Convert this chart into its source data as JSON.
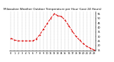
{
  "title": "Milwaukee Weather Outdoor Temperature per Hour (Last 24 Hours)",
  "hours": [
    0,
    1,
    2,
    3,
    4,
    5,
    6,
    7,
    8,
    9,
    10,
    11,
    12,
    13,
    14,
    15,
    16,
    17,
    18,
    19,
    20,
    21,
    22,
    23
  ],
  "temps": [
    28,
    26,
    25,
    25,
    25,
    25,
    25,
    27,
    32,
    38,
    44,
    50,
    55,
    53,
    52,
    48,
    42,
    36,
    30,
    26,
    22,
    19,
    17,
    15
  ],
  "line_color": "#dd0000",
  "marker": "o",
  "bg_color": "#ffffff",
  "plot_bg": "#ffffff",
  "grid_color": "#888888",
  "ylim": [
    14,
    58
  ],
  "yticks": [
    15,
    20,
    25,
    30,
    35,
    40,
    45,
    50,
    55
  ],
  "xlim": [
    -0.5,
    23.5
  ],
  "title_fontsize": 3.0,
  "tick_fontsize": 2.5,
  "linewidth": 0.7,
  "markersize": 1.0
}
